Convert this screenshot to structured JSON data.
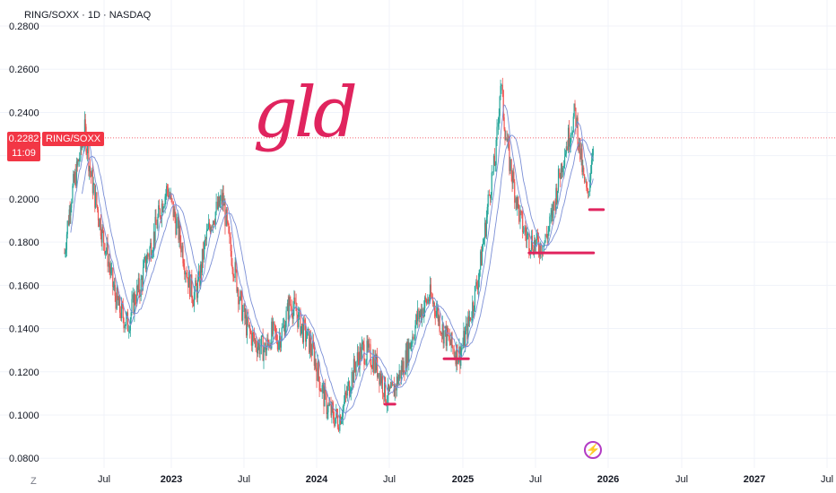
{
  "title": "RING/SOXX · 1D · NASDAQ",
  "price_label": {
    "value": "0.2282",
    "time": "11:09",
    "symbol": "RING/SOXX"
  },
  "annotation_text": "gld",
  "tv_logo": "Z",
  "colors": {
    "up": "#26a69a",
    "down": "#ef5350",
    "ma": "#7b8fd6",
    "annotation": "#e0245e",
    "price_line": "#f23645",
    "grid": "#f0f3fa"
  },
  "icons": {
    "spark": "lightning-bolt-icon"
  },
  "chart_data": {
    "type": "candlestick",
    "title": "RING/SOXX · 1D · NASDAQ",
    "y_ticks": [
      "0.0800",
      "0.1000",
      "0.1200",
      "0.1400",
      "0.1600",
      "0.1800",
      "0.2000",
      "0.2200",
      "0.2400",
      "0.2600",
      "0.2800"
    ],
    "ylim": [
      0.078,
      0.2825
    ],
    "x_ticks": [
      "Jul",
      "2023",
      "Jul",
      "2024",
      "Jul",
      "2025",
      "Jul",
      "2026",
      "Jul",
      "2027",
      "Jul"
    ],
    "x_ticks_dates": [
      "2022-07-01",
      "2023-01-01",
      "2023-07-01",
      "2024-01-01",
      "2024-07-01",
      "2025-01-01",
      "2025-07-01",
      "2026-01-01",
      "2026-07-01",
      "2027-01-01",
      "2027-07-01"
    ],
    "last_price": 0.2282,
    "price_path": [
      [
        "2022-03-15",
        0.175
      ],
      [
        "2022-04-01",
        0.2
      ],
      [
        "2022-04-20",
        0.215
      ],
      [
        "2022-05-10",
        0.232
      ],
      [
        "2022-05-25",
        0.212
      ],
      [
        "2022-06-10",
        0.198
      ],
      [
        "2022-06-25",
        0.185
      ],
      [
        "2022-07-10",
        0.175
      ],
      [
        "2022-07-25",
        0.16
      ],
      [
        "2022-08-10",
        0.15
      ],
      [
        "2022-08-25",
        0.145
      ],
      [
        "2022-09-05",
        0.142
      ],
      [
        "2022-09-25",
        0.155
      ],
      [
        "2022-10-10",
        0.16
      ],
      [
        "2022-10-25",
        0.172
      ],
      [
        "2022-11-10",
        0.18
      ],
      [
        "2022-11-25",
        0.19
      ],
      [
        "2022-12-10",
        0.2
      ],
      [
        "2022-12-22",
        0.205
      ],
      [
        "2023-01-05",
        0.195
      ],
      [
        "2023-01-25",
        0.18
      ],
      [
        "2023-02-10",
        0.165
      ],
      [
        "2023-02-25",
        0.155
      ],
      [
        "2023-03-10",
        0.16
      ],
      [
        "2023-03-25",
        0.178
      ],
      [
        "2023-04-10",
        0.19
      ],
      [
        "2023-04-25",
        0.195
      ],
      [
        "2023-05-10",
        0.2
      ],
      [
        "2023-05-25",
        0.18
      ],
      [
        "2023-06-10",
        0.165
      ],
      [
        "2023-06-25",
        0.15
      ],
      [
        "2023-07-10",
        0.14
      ],
      [
        "2023-07-25",
        0.135
      ],
      [
        "2023-08-10",
        0.132
      ],
      [
        "2023-08-25",
        0.13
      ],
      [
        "2023-09-10",
        0.138
      ],
      [
        "2023-09-25",
        0.135
      ],
      [
        "2023-10-10",
        0.14
      ],
      [
        "2023-10-25",
        0.152
      ],
      [
        "2023-11-10",
        0.148
      ],
      [
        "2023-11-25",
        0.14
      ],
      [
        "2023-12-10",
        0.135
      ],
      [
        "2023-12-25",
        0.128
      ],
      [
        "2024-01-10",
        0.115
      ],
      [
        "2024-01-25",
        0.105
      ],
      [
        "2024-02-10",
        0.1
      ],
      [
        "2024-02-25",
        0.098
      ],
      [
        "2024-03-10",
        0.105
      ],
      [
        "2024-03-25",
        0.115
      ],
      [
        "2024-04-10",
        0.125
      ],
      [
        "2024-04-25",
        0.13
      ],
      [
        "2024-05-10",
        0.128
      ],
      [
        "2024-05-25",
        0.125
      ],
      [
        "2024-06-10",
        0.118
      ],
      [
        "2024-06-25",
        0.108
      ],
      [
        "2024-07-10",
        0.11
      ],
      [
        "2024-07-25",
        0.118
      ],
      [
        "2024-08-10",
        0.125
      ],
      [
        "2024-08-25",
        0.135
      ],
      [
        "2024-09-10",
        0.145
      ],
      [
        "2024-09-25",
        0.15
      ],
      [
        "2024-10-10",
        0.155
      ],
      [
        "2024-10-25",
        0.15
      ],
      [
        "2024-11-10",
        0.14
      ],
      [
        "2024-11-25",
        0.135
      ],
      [
        "2024-12-10",
        0.13
      ],
      [
        "2024-12-25",
        0.128
      ],
      [
        "2025-01-10",
        0.138
      ],
      [
        "2025-01-25",
        0.15
      ],
      [
        "2025-02-10",
        0.165
      ],
      [
        "2025-02-25",
        0.185
      ],
      [
        "2025-03-10",
        0.205
      ],
      [
        "2025-03-25",
        0.22
      ],
      [
        "2025-04-05",
        0.255
      ],
      [
        "2025-04-15",
        0.235
      ],
      [
        "2025-04-25",
        0.22
      ],
      [
        "2025-05-10",
        0.205
      ],
      [
        "2025-05-25",
        0.19
      ],
      [
        "2025-06-10",
        0.182
      ],
      [
        "2025-06-25",
        0.18
      ],
      [
        "2025-07-10",
        0.178
      ],
      [
        "2025-07-25",
        0.18
      ],
      [
        "2025-08-10",
        0.19
      ],
      [
        "2025-08-25",
        0.205
      ],
      [
        "2025-09-10",
        0.22
      ],
      [
        "2025-09-25",
        0.23
      ],
      [
        "2025-10-10",
        0.24
      ],
      [
        "2025-10-20",
        0.225
      ],
      [
        "2025-10-30",
        0.21
      ],
      [
        "2025-11-10",
        0.2
      ],
      [
        "2025-11-25",
        0.228
      ]
    ],
    "moving_averages": [
      "fast MA",
      "slow MA"
    ],
    "annotations": [
      {
        "type": "horizontal-line",
        "x_start": "2024-06-20",
        "x_end": "2024-07-15",
        "y": 0.105
      },
      {
        "type": "horizontal-line",
        "x_start": "2024-11-15",
        "x_end": "2025-01-15",
        "y": 0.126
      },
      {
        "type": "horizontal-line",
        "x_start": "2025-06-15",
        "x_end": "2025-11-25",
        "y": 0.175
      },
      {
        "type": "horizontal-line",
        "x_start": "2025-11-15",
        "x_end": "2025-12-20",
        "y": 0.195
      }
    ]
  }
}
